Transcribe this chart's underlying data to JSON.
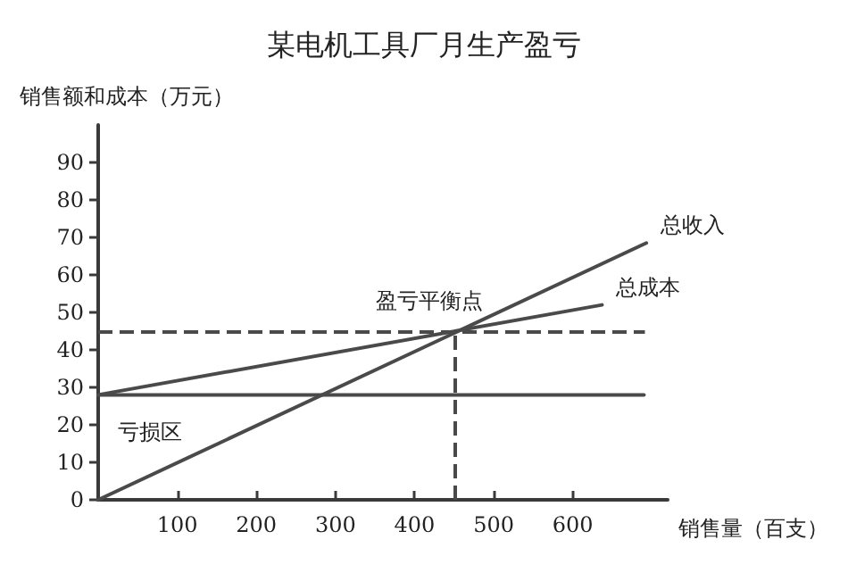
{
  "chart_data": {
    "type": "line",
    "title": "某电机工具厂月生产盈亏",
    "xlabel": "销售量（百支）",
    "ylabel": "销售额和成本（万元）",
    "xlim": [
      0,
      720
    ],
    "xticks": [
      100,
      200,
      300,
      400,
      500,
      600
    ],
    "ylim": [
      0,
      100
    ],
    "yticks": [
      0,
      10,
      20,
      30,
      40,
      50,
      60,
      70,
      80,
      90
    ],
    "series": [
      {
        "name": "总收入",
        "color": "#4a4a4a",
        "x": [
          0,
          693
        ],
        "values": [
          0,
          68.5
        ]
      },
      {
        "name": "总成本",
        "color": "#4a4a4a",
        "x": [
          0,
          637
        ],
        "values": [
          28,
          52
        ]
      },
      {
        "color": "#4a4a4a",
        "x": [
          0,
          690
        ],
        "values": [
          28,
          28
        ]
      }
    ],
    "ref_lines": [
      {
        "axis": "y",
        "value": 45,
        "color": "#4a4a4a",
        "line_style": "dashed"
      },
      {
        "axis": "x",
        "value": 450,
        "color": "#4a4a4a",
        "line_style": "dashed"
      }
    ],
    "annotations": [
      {
        "text": "盈亏平衡点",
        "x": 450,
        "y": 45
      },
      "亏损区"
    ],
    "grid": false,
    "legend": false,
    "marker": "none",
    "line_style": "solid"
  }
}
